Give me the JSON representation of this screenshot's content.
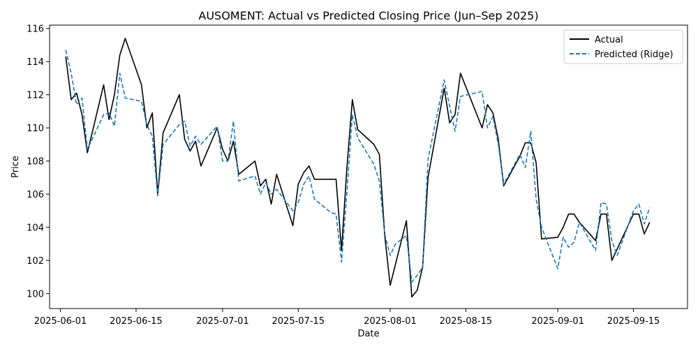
{
  "chart_data": {
    "type": "line",
    "title": "AUSOMENT: Actual vs Predicted Closing Price (Jun–Sep 2025)",
    "xlabel": "Date",
    "ylabel": "Price",
    "xlim": [
      "2025-05-30",
      "2025-09-25"
    ],
    "ylim": [
      99.1,
      116.2
    ],
    "x_ticks": [
      "2025-06-01",
      "2025-06-15",
      "2025-07-01",
      "2025-07-15",
      "2025-08-01",
      "2025-08-15",
      "2025-09-01",
      "2025-09-15"
    ],
    "y_ticks": [
      100,
      102,
      104,
      106,
      108,
      110,
      112,
      114,
      116
    ],
    "grid": false,
    "legend_position": "top-right",
    "series": [
      {
        "name": "Actual",
        "color": "#000000",
        "style": "solid",
        "points": [
          [
            "2025-06-02",
            114.3
          ],
          [
            "2025-06-03",
            111.7
          ],
          [
            "2025-06-04",
            112.1
          ],
          [
            "2025-06-05",
            110.8
          ],
          [
            "2025-06-06",
            108.5
          ],
          [
            "2025-06-09",
            112.6
          ],
          [
            "2025-06-10",
            110.5
          ],
          [
            "2025-06-11",
            112.0
          ],
          [
            "2025-06-12",
            114.4
          ],
          [
            "2025-06-13",
            115.4
          ],
          [
            "2025-06-16",
            112.6
          ],
          [
            "2025-06-17",
            110.0
          ],
          [
            "2025-06-18",
            110.9
          ],
          [
            "2025-06-19",
            106.0
          ],
          [
            "2025-06-20",
            109.7
          ],
          [
            "2025-06-23",
            112.0
          ],
          [
            "2025-06-24",
            109.3
          ],
          [
            "2025-06-25",
            108.6
          ],
          [
            "2025-06-26",
            109.2
          ],
          [
            "2025-06-27",
            107.7
          ],
          [
            "2025-06-30",
            110.0
          ],
          [
            "2025-07-01",
            108.7
          ],
          [
            "2025-07-02",
            108.0
          ],
          [
            "2025-07-03",
            109.2
          ],
          [
            "2025-07-04",
            107.2
          ],
          [
            "2025-07-07",
            108.0
          ],
          [
            "2025-07-08",
            106.5
          ],
          [
            "2025-07-09",
            106.9
          ],
          [
            "2025-07-10",
            105.4
          ],
          [
            "2025-07-11",
            107.2
          ],
          [
            "2025-07-14",
            104.1
          ],
          [
            "2025-07-15",
            106.6
          ],
          [
            "2025-07-16",
            107.3
          ],
          [
            "2025-07-17",
            107.7
          ],
          [
            "2025-07-18",
            106.9
          ],
          [
            "2025-07-21",
            106.9
          ],
          [
            "2025-07-22",
            106.9
          ],
          [
            "2025-07-23",
            102.6
          ],
          [
            "2025-07-24",
            107.6
          ],
          [
            "2025-07-25",
            111.7
          ],
          [
            "2025-07-26",
            109.9
          ],
          [
            "2025-07-29",
            109.0
          ],
          [
            "2025-07-30",
            108.4
          ],
          [
            "2025-07-31",
            103.5
          ],
          [
            "2025-08-01",
            100.5
          ],
          [
            "2025-08-04",
            104.4
          ],
          [
            "2025-08-05",
            99.8
          ],
          [
            "2025-08-06",
            100.2
          ],
          [
            "2025-08-07",
            101.6
          ],
          [
            "2025-08-08",
            107.0
          ],
          [
            "2025-08-11",
            112.4
          ],
          [
            "2025-08-12",
            110.3
          ],
          [
            "2025-08-13",
            110.8
          ],
          [
            "2025-08-14",
            113.3
          ],
          [
            "2025-08-18",
            110.0
          ],
          [
            "2025-08-19",
            111.4
          ],
          [
            "2025-08-20",
            110.9
          ],
          [
            "2025-08-21",
            109.3
          ],
          [
            "2025-08-22",
            106.5
          ],
          [
            "2025-08-25",
            108.3
          ],
          [
            "2025-08-26",
            109.1
          ],
          [
            "2025-08-27",
            109.1
          ],
          [
            "2025-08-28",
            107.9
          ],
          [
            "2025-08-29",
            103.3
          ],
          [
            "2025-09-01",
            103.4
          ],
          [
            "2025-09-02",
            104.0
          ],
          [
            "2025-09-03",
            104.8
          ],
          [
            "2025-09-04",
            104.8
          ],
          [
            "2025-09-05",
            104.3
          ],
          [
            "2025-09-08",
            103.2
          ],
          [
            "2025-09-09",
            104.8
          ],
          [
            "2025-09-10",
            104.8
          ],
          [
            "2025-09-11",
            102.0
          ],
          [
            "2025-09-12",
            102.7
          ],
          [
            "2025-09-15",
            104.8
          ],
          [
            "2025-09-16",
            104.8
          ],
          [
            "2025-09-17",
            103.6
          ],
          [
            "2025-09-18",
            104.3
          ]
        ]
      },
      {
        "name": "Predicted (Ridge)",
        "color": "#1f77b4",
        "style": "dashed",
        "points": [
          [
            "2025-06-02",
            114.7
          ],
          [
            "2025-06-03",
            113.3
          ],
          [
            "2025-06-04",
            111.4
          ],
          [
            "2025-06-05",
            111.8
          ],
          [
            "2025-06-06",
            108.7
          ],
          [
            "2025-06-09",
            110.8
          ],
          [
            "2025-06-10",
            110.9
          ],
          [
            "2025-06-11",
            110.1
          ],
          [
            "2025-06-12",
            113.3
          ],
          [
            "2025-06-13",
            111.8
          ],
          [
            "2025-06-16",
            111.6
          ],
          [
            "2025-06-17",
            110.2
          ],
          [
            "2025-06-18",
            109.5
          ],
          [
            "2025-06-19",
            105.9
          ],
          [
            "2025-06-20",
            109.0
          ],
          [
            "2025-06-23",
            110.2
          ],
          [
            "2025-06-24",
            110.4
          ],
          [
            "2025-06-25",
            108.9
          ],
          [
            "2025-06-26",
            109.5
          ],
          [
            "2025-06-27",
            109.0
          ],
          [
            "2025-06-30",
            110.1
          ],
          [
            "2025-07-01",
            108.0
          ],
          [
            "2025-07-02",
            108.0
          ],
          [
            "2025-07-03",
            110.4
          ],
          [
            "2025-07-04",
            106.8
          ],
          [
            "2025-07-07",
            107.1
          ],
          [
            "2025-07-08",
            106.0
          ],
          [
            "2025-07-09",
            106.7
          ],
          [
            "2025-07-10",
            106.0
          ],
          [
            "2025-07-11",
            106.3
          ],
          [
            "2025-07-14",
            105.0
          ],
          [
            "2025-07-15",
            105.5
          ],
          [
            "2025-07-16",
            106.6
          ],
          [
            "2025-07-17",
            107.1
          ],
          [
            "2025-07-18",
            105.7
          ],
          [
            "2025-07-21",
            104.9
          ],
          [
            "2025-07-22",
            104.8
          ],
          [
            "2025-07-23",
            101.9
          ],
          [
            "2025-07-24",
            106.1
          ],
          [
            "2025-07-25",
            110.8
          ],
          [
            "2025-07-26",
            109.4
          ],
          [
            "2025-07-29",
            107.8
          ],
          [
            "2025-07-30",
            106.8
          ],
          [
            "2025-07-31",
            103.6
          ],
          [
            "2025-08-01",
            102.3
          ],
          [
            "2025-08-02",
            103.0
          ],
          [
            "2025-08-04",
            103.5
          ],
          [
            "2025-08-05",
            100.7
          ],
          [
            "2025-08-06",
            101.1
          ],
          [
            "2025-08-07",
            101.6
          ],
          [
            "2025-08-08",
            108.1
          ],
          [
            "2025-08-11",
            112.9
          ],
          [
            "2025-08-12",
            111.3
          ],
          [
            "2025-08-13",
            109.8
          ],
          [
            "2025-08-14",
            111.9
          ],
          [
            "2025-08-18",
            112.2
          ],
          [
            "2025-08-19",
            110.0
          ],
          [
            "2025-08-20",
            110.7
          ],
          [
            "2025-08-21",
            109.0
          ],
          [
            "2025-08-22",
            106.6
          ],
          [
            "2025-08-25",
            108.4
          ],
          [
            "2025-08-26",
            107.6
          ],
          [
            "2025-08-27",
            109.8
          ],
          [
            "2025-08-28",
            105.7
          ],
          [
            "2025-08-29",
            104.0
          ],
          [
            "2025-09-01",
            101.5
          ],
          [
            "2025-09-02",
            103.4
          ],
          [
            "2025-09-03",
            102.8
          ],
          [
            "2025-09-04",
            103.1
          ],
          [
            "2025-09-05",
            104.3
          ],
          [
            "2025-09-08",
            102.6
          ],
          [
            "2025-09-09",
            105.5
          ],
          [
            "2025-09-10",
            105.4
          ],
          [
            "2025-09-11",
            103.2
          ],
          [
            "2025-09-12",
            102.3
          ],
          [
            "2025-09-15",
            105.0
          ],
          [
            "2025-09-16",
            105.4
          ],
          [
            "2025-09-17",
            104.2
          ],
          [
            "2025-09-18",
            105.2
          ]
        ]
      }
    ]
  }
}
